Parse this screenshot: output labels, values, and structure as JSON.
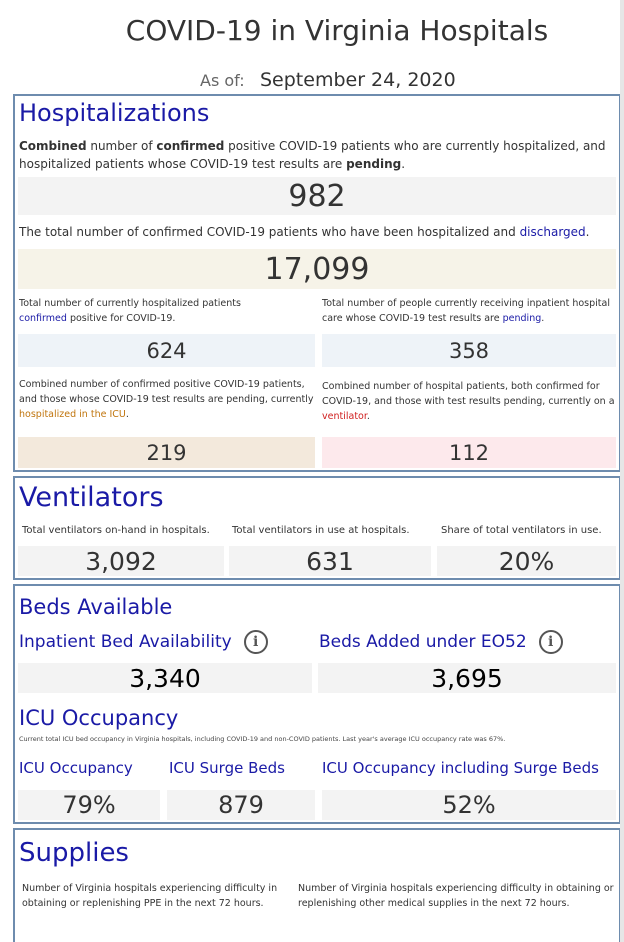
{
  "header": {
    "title": "COVID-19 in Virginia Hospitals",
    "asof_label": "As of:",
    "asof_value": "September 24, 2020"
  },
  "hospitalizations": {
    "title": "Hospitalizations",
    "combined_desc": {
      "p1": "Combined",
      "p2": " number of ",
      "p3": "confirmed",
      "p4": " positive COVID-19 patients who are currently hospitalized, and hospitalized patients whose COVID-19 test results are ",
      "p5": "pending",
      "p6": "."
    },
    "combined_value": "982",
    "discharged_desc": {
      "p1": "The total number of confirmed COVID-19 patients who have been hospitalized and ",
      "p2": "discharged",
      "p3": "."
    },
    "discharged_value": "17,099",
    "confirmed_desc": {
      "p1": "Total number of currently hospitalized patients ",
      "p2": "confirmed",
      "p3": " positive for COVID-19."
    },
    "confirmed_value": "624",
    "pending_desc": {
      "p1": "Total number of people currently receiving inpatient hospital care whose COVID-19 test results are ",
      "p2": "pending",
      "p3": "."
    },
    "pending_value": "358",
    "icu_desc": {
      "p1": "Combined number of confirmed positive COVID-19 patients, and those whose COVID-19 test results are pending, currently ",
      "p2": "hospitalized in the ICU",
      "p3": "."
    },
    "icu_value": "219",
    "vent_desc": {
      "p1": "Combined number of hospital patients, both confirmed for COVID-19, and those with test results pending, currently on a ",
      "p2": "ventilator",
      "p3": "."
    },
    "vent_value": "112"
  },
  "ventilators": {
    "title": "Ventilators",
    "onhand_label": "Total ventilators on-hand in hospitals.",
    "onhand_value": "3,092",
    "inuse_label": "Total ventilators in use at hospitals.",
    "inuse_value": "631",
    "share_label": "Share of total ventilators in use.",
    "share_value": "20%"
  },
  "beds": {
    "title": "Beds Available",
    "inpatient_label": "Inpatient Bed Availability",
    "inpatient_value": "3,340",
    "added_label": "Beds Added under EO52",
    "added_value": "3,695",
    "info_glyph": "i"
  },
  "icu": {
    "title": "ICU Occupancy",
    "note": "Current total ICU bed occupancy in Virginia hospitals, including COVID-19 and non-COVID patients. Last year's average ICU occupancy rate was 67%.",
    "occupancy_label": "ICU Occupancy",
    "occupancy_value": "79%",
    "surge_label": "ICU Surge Beds",
    "surge_value": "879",
    "incl_label": "ICU Occupancy including Surge Beds",
    "incl_value": "52%"
  },
  "supplies": {
    "title": "Supplies",
    "ppe_desc": "Number of Virginia hospitals experiencing difficulty in obtaining or replenishing PPE in the next 72 hours.",
    "other_desc": "Number of Virginia hospitals experiencing difficulty in obtaining or replenishing other medical supplies in the next 72 hours."
  }
}
